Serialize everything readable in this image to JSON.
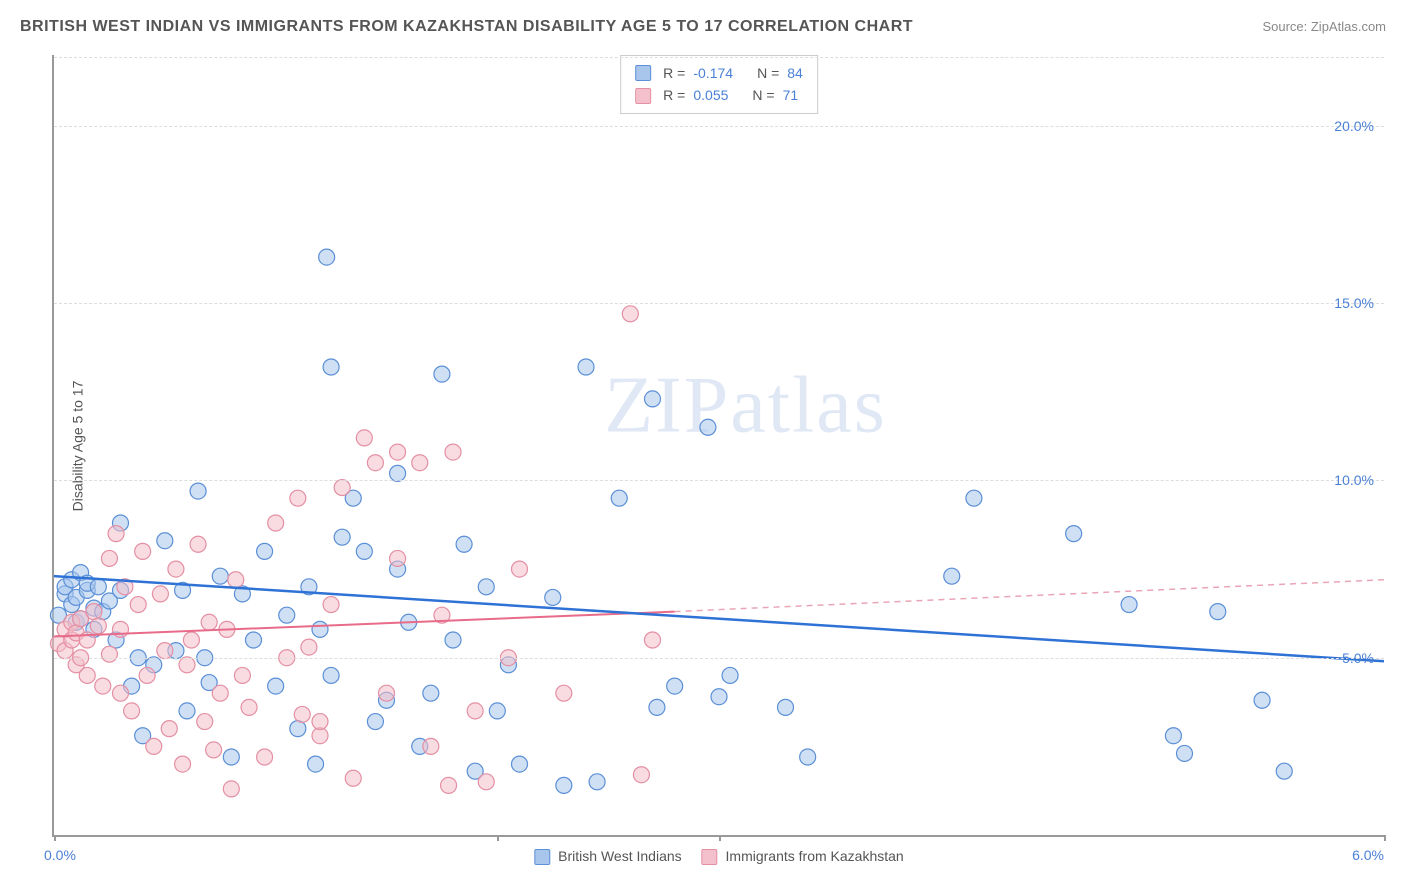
{
  "title": "BRITISH WEST INDIAN VS IMMIGRANTS FROM KAZAKHSTAN DISABILITY AGE 5 TO 17 CORRELATION CHART",
  "source": "Source: ZipAtlas.com",
  "watermark": "ZIPatlas",
  "chart": {
    "type": "scatter",
    "y_axis_label": "Disability Age 5 to 17",
    "xlim": [
      0.0,
      6.0
    ],
    "ylim": [
      0.0,
      22.0
    ],
    "y_ticks": [
      5.0,
      10.0,
      15.0,
      20.0
    ],
    "y_tick_labels": [
      "5.0%",
      "10.0%",
      "15.0%",
      "20.0%"
    ],
    "x_origin_label": "0.0%",
    "x_max_label": "6.0%",
    "x_ticks_at": [
      0.0,
      2.0,
      3.0,
      6.0
    ],
    "background_color": "#ffffff",
    "grid_color": "#dddddd",
    "axis_color": "#999999",
    "marker_radius": 8,
    "marker_stroke_width": 1.2,
    "series": [
      {
        "name": "British West Indians",
        "fill": "#a8c6ec",
        "stroke": "#5b8fd6",
        "fill_opacity": 0.55,
        "r_value": "-0.174",
        "n_value": "84",
        "regression": {
          "x1": 0.0,
          "y1": 7.3,
          "x2": 6.0,
          "y2": 4.9,
          "stroke": "#2f72d6",
          "width": 2.5,
          "dash": ""
        },
        "points": [
          [
            0.02,
            6.2
          ],
          [
            0.05,
            6.8
          ],
          [
            0.05,
            7.0
          ],
          [
            0.08,
            6.5
          ],
          [
            0.08,
            7.2
          ],
          [
            0.1,
            6.0
          ],
          [
            0.1,
            6.7
          ],
          [
            0.12,
            7.4
          ],
          [
            0.12,
            6.1
          ],
          [
            0.15,
            6.9
          ],
          [
            0.15,
            7.1
          ],
          [
            0.18,
            5.8
          ],
          [
            0.18,
            6.4
          ],
          [
            0.2,
            7.0
          ],
          [
            0.22,
            6.3
          ],
          [
            0.25,
            6.6
          ],
          [
            0.28,
            5.5
          ],
          [
            0.3,
            8.8
          ],
          [
            0.3,
            6.9
          ],
          [
            0.35,
            4.2
          ],
          [
            0.38,
            5.0
          ],
          [
            0.4,
            2.8
          ],
          [
            0.45,
            4.8
          ],
          [
            0.5,
            8.3
          ],
          [
            0.55,
            5.2
          ],
          [
            0.58,
            6.9
          ],
          [
            0.6,
            3.5
          ],
          [
            0.65,
            9.7
          ],
          [
            0.68,
            5.0
          ],
          [
            0.7,
            4.3
          ],
          [
            0.75,
            7.3
          ],
          [
            0.8,
            2.2
          ],
          [
            0.85,
            6.8
          ],
          [
            0.9,
            5.5
          ],
          [
            0.95,
            8.0
          ],
          [
            1.0,
            4.2
          ],
          [
            1.05,
            6.2
          ],
          [
            1.1,
            3.0
          ],
          [
            1.15,
            7.0
          ],
          [
            1.18,
            2.0
          ],
          [
            1.2,
            5.8
          ],
          [
            1.23,
            16.3
          ],
          [
            1.25,
            4.5
          ],
          [
            1.25,
            13.2
          ],
          [
            1.3,
            8.4
          ],
          [
            1.35,
            9.5
          ],
          [
            1.4,
            8.0
          ],
          [
            1.45,
            3.2
          ],
          [
            1.5,
            3.8
          ],
          [
            1.55,
            7.5
          ],
          [
            1.55,
            10.2
          ],
          [
            1.6,
            6.0
          ],
          [
            1.65,
            2.5
          ],
          [
            1.7,
            4.0
          ],
          [
            1.75,
            13.0
          ],
          [
            1.8,
            5.5
          ],
          [
            1.85,
            8.2
          ],
          [
            1.9,
            1.8
          ],
          [
            1.95,
            7.0
          ],
          [
            2.0,
            3.5
          ],
          [
            2.05,
            4.8
          ],
          [
            2.1,
            2.0
          ],
          [
            2.25,
            6.7
          ],
          [
            2.3,
            1.4
          ],
          [
            2.4,
            13.2
          ],
          [
            2.45,
            1.5
          ],
          [
            2.55,
            9.5
          ],
          [
            2.7,
            12.3
          ],
          [
            2.72,
            3.6
          ],
          [
            2.8,
            4.2
          ],
          [
            2.95,
            11.5
          ],
          [
            3.0,
            3.9
          ],
          [
            3.05,
            4.5
          ],
          [
            3.3,
            3.6
          ],
          [
            3.4,
            2.2
          ],
          [
            4.05,
            7.3
          ],
          [
            4.15,
            9.5
          ],
          [
            4.6,
            8.5
          ],
          [
            4.85,
            6.5
          ],
          [
            5.05,
            2.8
          ],
          [
            5.1,
            2.3
          ],
          [
            5.25,
            6.3
          ],
          [
            5.45,
            3.8
          ],
          [
            5.55,
            1.8
          ]
        ]
      },
      {
        "name": "Immigrants from Kazakhstan",
        "fill": "#f4c0cb",
        "stroke": "#e48fa3",
        "fill_opacity": 0.55,
        "r_value": "0.055",
        "n_value": "71",
        "regression_solid": {
          "x1": 0.0,
          "y1": 5.6,
          "x2": 2.8,
          "y2": 6.3,
          "stroke": "#e86b8a",
          "width": 2,
          "dash": ""
        },
        "regression_dash": {
          "x1": 2.8,
          "y1": 6.3,
          "x2": 6.0,
          "y2": 7.2,
          "stroke": "#e9a5b5",
          "width": 1.5,
          "dash": "6,5"
        },
        "points": [
          [
            0.02,
            5.4
          ],
          [
            0.05,
            5.8
          ],
          [
            0.05,
            5.2
          ],
          [
            0.08,
            6.0
          ],
          [
            0.08,
            5.5
          ],
          [
            0.1,
            4.8
          ],
          [
            0.1,
            5.7
          ],
          [
            0.12,
            6.1
          ],
          [
            0.12,
            5.0
          ],
          [
            0.15,
            5.5
          ],
          [
            0.15,
            4.5
          ],
          [
            0.18,
            6.3
          ],
          [
            0.2,
            5.9
          ],
          [
            0.22,
            4.2
          ],
          [
            0.25,
            7.8
          ],
          [
            0.25,
            5.1
          ],
          [
            0.28,
            8.5
          ],
          [
            0.3,
            4.0
          ],
          [
            0.3,
            5.8
          ],
          [
            0.32,
            7.0
          ],
          [
            0.35,
            3.5
          ],
          [
            0.38,
            6.5
          ],
          [
            0.4,
            8.0
          ],
          [
            0.42,
            4.5
          ],
          [
            0.45,
            2.5
          ],
          [
            0.48,
            6.8
          ],
          [
            0.5,
            5.2
          ],
          [
            0.52,
            3.0
          ],
          [
            0.55,
            7.5
          ],
          [
            0.58,
            2.0
          ],
          [
            0.6,
            4.8
          ],
          [
            0.62,
            5.5
          ],
          [
            0.65,
            8.2
          ],
          [
            0.68,
            3.2
          ],
          [
            0.7,
            6.0
          ],
          [
            0.72,
            2.4
          ],
          [
            0.75,
            4.0
          ],
          [
            0.78,
            5.8
          ],
          [
            0.8,
            1.3
          ],
          [
            0.82,
            7.2
          ],
          [
            0.85,
            4.5
          ],
          [
            0.88,
            3.6
          ],
          [
            0.95,
            2.2
          ],
          [
            1.0,
            8.8
          ],
          [
            1.05,
            5.0
          ],
          [
            1.1,
            9.5
          ],
          [
            1.12,
            3.4
          ],
          [
            1.15,
            5.3
          ],
          [
            1.2,
            2.8
          ],
          [
            1.2,
            3.2
          ],
          [
            1.25,
            6.5
          ],
          [
            1.3,
            9.8
          ],
          [
            1.35,
            1.6
          ],
          [
            1.4,
            11.2
          ],
          [
            1.45,
            10.5
          ],
          [
            1.5,
            4.0
          ],
          [
            1.55,
            7.8
          ],
          [
            1.55,
            10.8
          ],
          [
            1.65,
            10.5
          ],
          [
            1.7,
            2.5
          ],
          [
            1.75,
            6.2
          ],
          [
            1.78,
            1.4
          ],
          [
            1.8,
            10.8
          ],
          [
            1.9,
            3.5
          ],
          [
            1.95,
            1.5
          ],
          [
            2.05,
            5.0
          ],
          [
            2.1,
            7.5
          ],
          [
            2.3,
            4.0
          ],
          [
            2.6,
            14.7
          ],
          [
            2.65,
            1.7
          ],
          [
            2.7,
            5.5
          ]
        ]
      }
    ]
  },
  "stats_labels": {
    "r": "R =",
    "n": "N ="
  },
  "bottom_legend": [
    {
      "label": "British West Indians",
      "fill": "#a8c6ec",
      "stroke": "#5b8fd6"
    },
    {
      "label": "Immigrants from Kazakhstan",
      "fill": "#f4c0cb",
      "stroke": "#e48fa3"
    }
  ]
}
